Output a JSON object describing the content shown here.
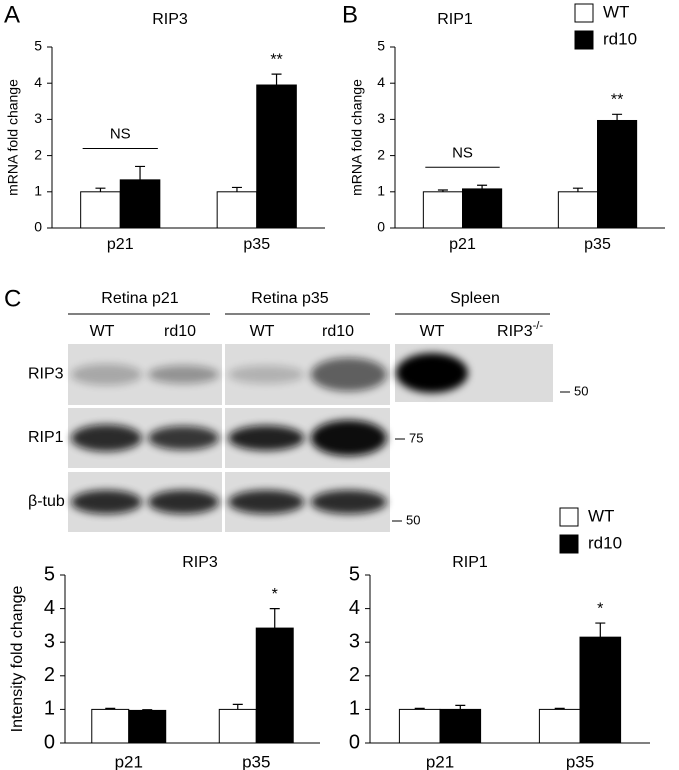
{
  "panel_labels": [
    "A",
    "B",
    "C"
  ],
  "chart_data": [
    {
      "type": "bar",
      "title": "RIP3",
      "ylabel": "mRNA fold change",
      "categories": [
        "p21",
        "p35"
      ],
      "ylim": [
        0,
        5
      ],
      "yticks": [
        0,
        1,
        2,
        3,
        4,
        5
      ],
      "series": [
        {
          "name": "WT",
          "color": "#ffffff",
          "values": [
            1,
            1
          ],
          "errors": [
            0.1,
            0.12
          ]
        },
        {
          "name": "rd10",
          "color": "#000000",
          "values": [
            1.33,
            3.95
          ],
          "errors": [
            0.37,
            0.3
          ]
        }
      ],
      "annotations": [
        {
          "text": "NS",
          "category": 0,
          "line": true
        },
        {
          "text": "**",
          "category": 1
        }
      ]
    },
    {
      "type": "bar",
      "title": "RIP1",
      "ylabel": "mRNA fold change",
      "categories": [
        "p21",
        "p35"
      ],
      "ylim": [
        0,
        5
      ],
      "yticks": [
        0,
        1,
        2,
        3,
        4,
        5
      ],
      "legend": "top-right",
      "series": [
        {
          "name": "WT",
          "color": "#ffffff",
          "values": [
            1,
            1
          ],
          "errors": [
            0.05,
            0.1
          ]
        },
        {
          "name": "rd10",
          "color": "#000000",
          "values": [
            1.08,
            2.97
          ],
          "errors": [
            0.1,
            0.17
          ]
        }
      ],
      "annotations": [
        {
          "text": "NS",
          "category": 0,
          "line": true
        },
        {
          "text": "**",
          "category": 1
        }
      ]
    },
    {
      "type": "bar",
      "title": "RIP3",
      "ylabel": "Intensity fold change",
      "categories": [
        "p21",
        "p35"
      ],
      "ylim": [
        0,
        5
      ],
      "yticks": [
        0,
        1,
        2,
        3,
        4,
        5
      ],
      "series": [
        {
          "name": "WT",
          "color": "#ffffff",
          "values": [
            1,
            1
          ],
          "errors": [
            0.03,
            0.15
          ]
        },
        {
          "name": "rd10",
          "color": "#000000",
          "values": [
            0.97,
            3.42
          ],
          "errors": [
            0.02,
            0.58
          ]
        }
      ],
      "annotations": [
        {
          "text": "*",
          "category": 1
        }
      ]
    },
    {
      "type": "bar",
      "title": "RIP1",
      "categories": [
        "p21",
        "p35"
      ],
      "ylim": [
        0,
        5
      ],
      "yticks": [
        0,
        1,
        2,
        3,
        4,
        5
      ],
      "legend": "top-right",
      "series": [
        {
          "name": "WT",
          "color": "#ffffff",
          "values": [
            1,
            1
          ],
          "errors": [
            0.03,
            0.03
          ]
        },
        {
          "name": "rd10",
          "color": "#000000",
          "values": [
            1.0,
            3.15
          ],
          "errors": [
            0.12,
            0.42
          ]
        }
      ],
      "annotations": [
        {
          "text": "*",
          "category": 1
        }
      ]
    }
  ],
  "blot": {
    "groups": [
      "Retina p21",
      "Retina p35",
      "Spleen"
    ],
    "lanes": [
      {
        "text": "WT"
      },
      {
        "text": "rd10"
      },
      {
        "text": "WT"
      },
      {
        "text": "rd10"
      },
      {
        "text": "WT"
      },
      {
        "text": "RIP3",
        "sup": "-/-"
      }
    ],
    "rows": [
      "RIP3",
      "RIP1",
      "β-tub"
    ],
    "markers": [
      50,
      75,
      50
    ]
  }
}
